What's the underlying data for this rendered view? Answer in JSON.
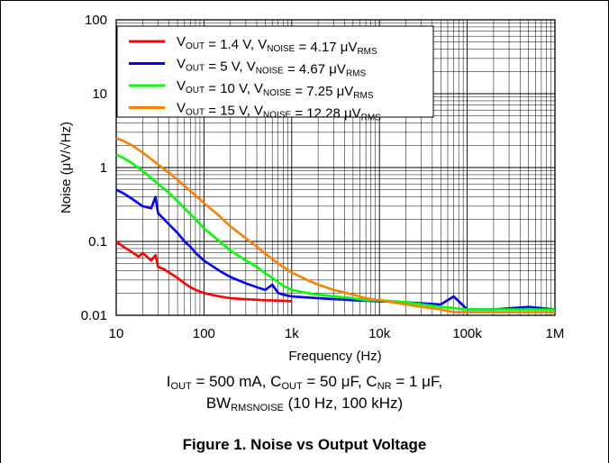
{
  "chart_data": {
    "type": "line",
    "title": "",
    "xlabel": "Frequency (Hz)",
    "ylabel": "Noise (μV/√Hz)",
    "x_scale": "log",
    "y_scale": "log",
    "xlim": [
      10,
      1000000
    ],
    "ylim": [
      0.01,
      100
    ],
    "grid": true,
    "legend_position": "top-left",
    "x_ticks": [
      "10",
      "100",
      "1k",
      "10k",
      "100k",
      "1M"
    ],
    "y_ticks": [
      "0.01",
      "0.1",
      "1",
      "10",
      "100"
    ],
    "series": [
      {
        "name": "VOUT = 1.4 V, VNOISE = 4.17 μVRMS",
        "legend_parts": [
          [
            "V",
            ""
          ],
          [
            "OUT",
            "sub"
          ],
          [
            " = 1.4 V, V",
            ""
          ],
          [
            "NOISE",
            "sub"
          ],
          [
            " = 4.17 μV",
            ""
          ],
          [
            "RMS",
            "sub"
          ]
        ],
        "color": "#ff0000",
        "x": [
          10,
          12,
          15,
          18,
          20,
          25,
          28,
          30,
          35,
          40,
          50,
          60,
          70,
          80,
          100,
          120,
          150,
          200,
          300,
          500,
          700,
          1000
        ],
        "y": [
          0.1,
          0.085,
          0.072,
          0.062,
          0.07,
          0.055,
          0.065,
          0.045,
          0.042,
          0.038,
          0.032,
          0.027,
          0.024,
          0.022,
          0.02,
          0.019,
          0.018,
          0.017,
          0.0165,
          0.016,
          0.0158,
          0.0155
        ]
      },
      {
        "name": "VOUT = 5 V, VNOISE = 4.67 μVRMS",
        "legend_parts": [
          [
            "V",
            ""
          ],
          [
            "OUT",
            "sub"
          ],
          [
            " = 5 V, V",
            ""
          ],
          [
            "NOISE",
            "sub"
          ],
          [
            " = 4.67 μV",
            ""
          ],
          [
            "RMS",
            "sub"
          ]
        ],
        "color": "#0000ff",
        "x": [
          10,
          12,
          15,
          20,
          25,
          28,
          30,
          35,
          40,
          50,
          60,
          70,
          80,
          100,
          150,
          200,
          300,
          400,
          500,
          600,
          700,
          800,
          1000,
          2000,
          5000,
          10000,
          20000,
          50000,
          70000,
          100000,
          200000,
          500000,
          1000000
        ],
        "y": [
          0.5,
          0.45,
          0.38,
          0.3,
          0.28,
          0.4,
          0.24,
          0.2,
          0.17,
          0.13,
          0.1,
          0.085,
          0.07,
          0.055,
          0.04,
          0.033,
          0.027,
          0.024,
          0.022,
          0.026,
          0.02,
          0.019,
          0.018,
          0.017,
          0.016,
          0.0155,
          0.015,
          0.014,
          0.018,
          0.012,
          0.012,
          0.013,
          0.012
        ]
      },
      {
        "name": "VOUT = 10 V, VNOISE = 7.25 μVRMS",
        "legend_parts": [
          [
            "V",
            ""
          ],
          [
            "OUT",
            "sub"
          ],
          [
            " = 10 V, V",
            ""
          ],
          [
            "NOISE",
            "sub"
          ],
          [
            " = 7.25 μV",
            ""
          ],
          [
            "RMS",
            "sub"
          ]
        ],
        "color": "#00ff00",
        "x": [
          10,
          12,
          15,
          20,
          25,
          30,
          40,
          50,
          60,
          80,
          100,
          150,
          200,
          300,
          400,
          500,
          600,
          700,
          800,
          1000,
          1500,
          2000,
          3000,
          5000,
          7000,
          10000,
          20000,
          50000,
          100000,
          200000,
          500000,
          1000000
        ],
        "y": [
          1.5,
          1.35,
          1.15,
          0.9,
          0.72,
          0.6,
          0.45,
          0.35,
          0.28,
          0.2,
          0.15,
          0.1,
          0.075,
          0.055,
          0.045,
          0.037,
          0.032,
          0.028,
          0.025,
          0.022,
          0.02,
          0.019,
          0.018,
          0.017,
          0.016,
          0.016,
          0.015,
          0.013,
          0.012,
          0.012,
          0.012,
          0.012
        ]
      },
      {
        "name": "VOUT = 15 V, VNOISE = 12.28 μVRMS",
        "legend_parts": [
          [
            "V",
            ""
          ],
          [
            "OUT",
            "sub"
          ],
          [
            " = 15 V, V",
            ""
          ],
          [
            "NOISE",
            "sub"
          ],
          [
            " = 12.28 μV",
            ""
          ],
          [
            "RMS",
            "sub"
          ]
        ],
        "color": "#ff8000",
        "x": [
          10,
          12,
          15,
          20,
          25,
          30,
          40,
          50,
          60,
          80,
          100,
          150,
          200,
          300,
          400,
          500,
          700,
          1000,
          1500,
          2000,
          3000,
          5000,
          7000,
          10000,
          20000,
          30000,
          50000,
          70000,
          100000,
          200000,
          500000,
          1000000
        ],
        "y": [
          2.5,
          2.3,
          2.0,
          1.6,
          1.3,
          1.1,
          0.85,
          0.68,
          0.56,
          0.42,
          0.33,
          0.22,
          0.16,
          0.11,
          0.085,
          0.068,
          0.05,
          0.038,
          0.03,
          0.026,
          0.022,
          0.019,
          0.017,
          0.016,
          0.014,
          0.013,
          0.012,
          0.011,
          0.011,
          0.011,
          0.011,
          0.011
        ]
      }
    ]
  },
  "caption": {
    "conditions_line1": [
      [
        "I",
        ""
      ],
      [
        "OUT",
        "sub"
      ],
      [
        " = 500 mA, C",
        ""
      ],
      [
        "OUT",
        "sub"
      ],
      [
        " = 50 μF, C",
        ""
      ],
      [
        "NR",
        "sub"
      ],
      [
        " = 1 μF,",
        ""
      ]
    ],
    "conditions_line2": [
      [
        "BW",
        ""
      ],
      [
        "RMSNOISE",
        "sub"
      ],
      [
        " (10 Hz, 100 kHz)",
        ""
      ]
    ],
    "figure_title": "Figure 1. Noise vs Output Voltage"
  }
}
